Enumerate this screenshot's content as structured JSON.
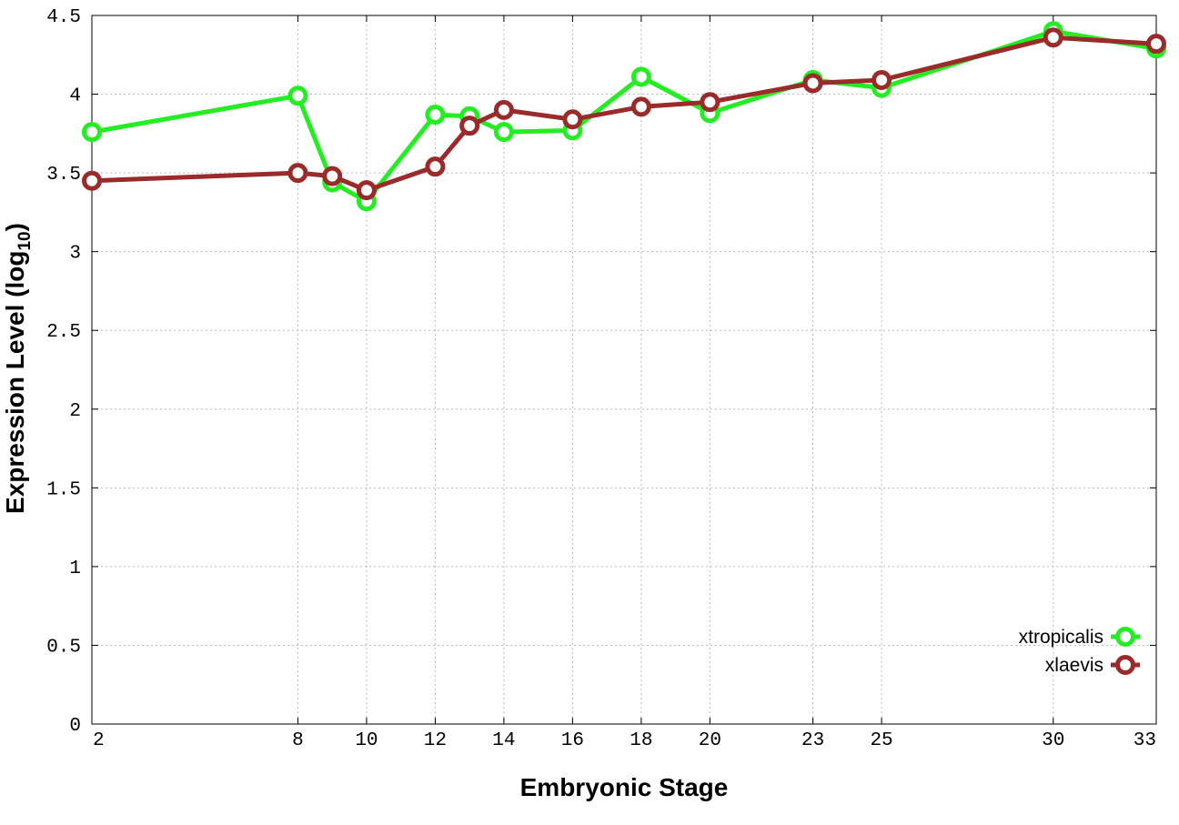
{
  "chart_data": {
    "type": "line",
    "xlabel": "Embryonic Stage",
    "ylabel_main": "Expression Level (log",
    "ylabel_sub": "10",
    "ylabel_close": ")",
    "ylim": [
      0,
      4.5
    ],
    "x_ticks": [
      2,
      8,
      10,
      12,
      14,
      16,
      18,
      20,
      23,
      25,
      30,
      33
    ],
    "x_tick_labels": [
      "2",
      "8",
      "10",
      "12",
      "14",
      "16",
      "18",
      "20",
      "23",
      "25",
      "30",
      "33"
    ],
    "y_ticks": [
      0,
      0.5,
      1,
      1.5,
      2,
      2.5,
      3,
      3.5,
      4,
      4.5
    ],
    "y_tick_labels": [
      "0",
      "0.5",
      "1",
      "1.5",
      "2",
      "2.5",
      "3",
      "3.5",
      "4",
      "4.5"
    ],
    "grid": true,
    "legend_position": "bottom-right",
    "series": [
      {
        "name": "xtropicalis",
        "color": "#22ee22",
        "points": [
          [
            2,
            3.76
          ],
          [
            8,
            3.99
          ],
          [
            9,
            3.44
          ],
          [
            10,
            3.32
          ],
          [
            12,
            3.87
          ],
          [
            13,
            3.86
          ],
          [
            14,
            3.76
          ],
          [
            16,
            3.77
          ],
          [
            18,
            4.11
          ],
          [
            20,
            3.88
          ],
          [
            23,
            4.09
          ],
          [
            25,
            4.04
          ],
          [
            30,
            4.4
          ],
          [
            33,
            4.29
          ]
        ]
      },
      {
        "name": "xlaevis",
        "color": "#9b2a2a",
        "points": [
          [
            2,
            3.45
          ],
          [
            8,
            3.5
          ],
          [
            9,
            3.48
          ],
          [
            10,
            3.39
          ],
          [
            12,
            3.54
          ],
          [
            13,
            3.8
          ],
          [
            14,
            3.9
          ],
          [
            16,
            3.84
          ],
          [
            18,
            3.92
          ],
          [
            20,
            3.95
          ],
          [
            23,
            4.07
          ],
          [
            25,
            4.09
          ],
          [
            30,
            4.36
          ],
          [
            33,
            4.32
          ]
        ]
      }
    ]
  }
}
